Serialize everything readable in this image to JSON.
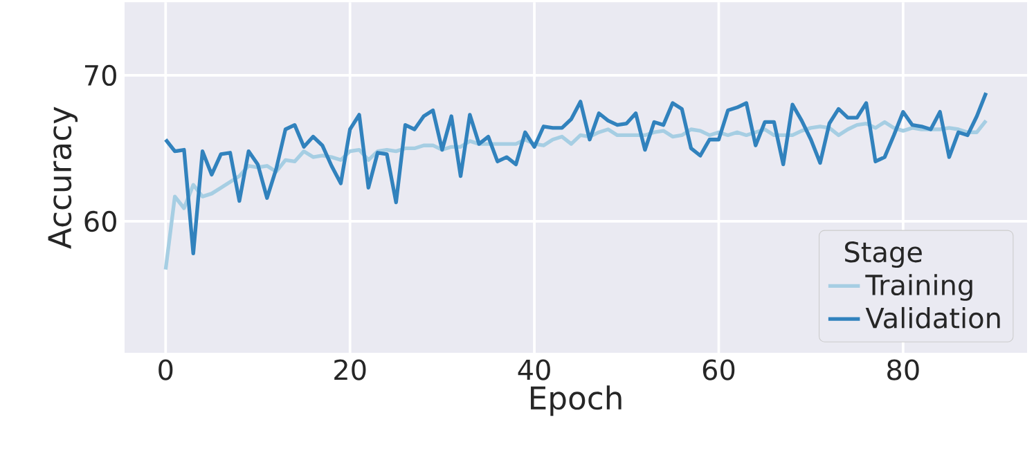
{
  "chart_data": {
    "type": "line",
    "xlabel": "Epoch",
    "ylabel": "Accuracy",
    "legend_title": "Stage",
    "legend": "bottom right",
    "grid": true,
    "x": [
      0,
      1,
      2,
      3,
      4,
      5,
      6,
      7,
      8,
      9,
      10,
      11,
      12,
      13,
      14,
      15,
      16,
      17,
      18,
      19,
      20,
      21,
      22,
      23,
      24,
      25,
      26,
      27,
      28,
      29,
      30,
      31,
      32,
      33,
      34,
      35,
      36,
      37,
      38,
      39,
      40,
      41,
      42,
      43,
      44,
      45,
      46,
      47,
      48,
      49,
      50,
      51,
      52,
      53,
      54,
      55,
      56,
      57,
      58,
      59,
      60,
      61,
      62,
      63,
      64,
      65,
      66,
      67,
      68,
      69,
      70,
      71,
      72,
      73,
      74,
      75,
      76,
      77,
      78,
      79,
      80,
      81,
      82,
      83,
      84,
      85,
      86,
      87,
      88,
      89
    ],
    "xlim": [
      -4.45,
      93.45
    ],
    "xticks": [
      0,
      20,
      40,
      60,
      80
    ],
    "ylim": [
      51,
      75
    ],
    "yticks": [
      60,
      70
    ],
    "series": [
      {
        "name": "Training",
        "color": "#a6cee3",
        "values": [
          56.7,
          61.7,
          60.9,
          62.5,
          61.7,
          61.9,
          62.3,
          62.7,
          63.1,
          63.8,
          63.7,
          63.8,
          63.4,
          64.2,
          64.1,
          64.8,
          64.4,
          64.5,
          64.4,
          64.2,
          64.8,
          64.9,
          64.2,
          64.8,
          64.9,
          64.8,
          65.0,
          65.0,
          65.2,
          65.2,
          64.9,
          65.1,
          65.1,
          65.5,
          65.3,
          65.3,
          65.3,
          65.3,
          65.3,
          65.6,
          65.3,
          65.2,
          65.6,
          65.8,
          65.3,
          65.9,
          65.8,
          66.1,
          66.3,
          65.9,
          65.9,
          65.9,
          65.9,
          66.1,
          66.2,
          65.8,
          65.9,
          66.3,
          66.2,
          65.9,
          66.1,
          65.9,
          66.1,
          65.9,
          66.1,
          66.3,
          65.9,
          65.9,
          65.9,
          66.2,
          66.4,
          66.5,
          66.4,
          65.9,
          66.3,
          66.6,
          66.7,
          66.4,
          66.8,
          66.4,
          66.2,
          66.4,
          66.3,
          66.3,
          66.3,
          66.4,
          66.3,
          66.1,
          66.1,
          66.9
        ]
      },
      {
        "name": "Validation",
        "color": "#3182bd",
        "values": [
          65.6,
          64.8,
          64.9,
          57.8,
          64.8,
          63.2,
          64.6,
          64.7,
          61.4,
          64.8,
          63.9,
          61.6,
          63.6,
          66.3,
          66.6,
          65.1,
          65.8,
          65.2,
          63.8,
          62.6,
          66.3,
          67.3,
          62.3,
          64.7,
          64.6,
          61.3,
          66.6,
          66.3,
          67.2,
          67.6,
          64.9,
          67.2,
          63.1,
          67.3,
          65.3,
          65.8,
          64.1,
          64.4,
          63.9,
          66.1,
          65.1,
          66.5,
          66.4,
          66.4,
          67.0,
          68.2,
          65.6,
          67.4,
          66.9,
          66.6,
          66.7,
          67.4,
          64.9,
          66.8,
          66.6,
          68.1,
          67.7,
          65.0,
          64.5,
          65.6,
          65.6,
          67.6,
          67.8,
          68.1,
          65.2,
          66.8,
          66.8,
          63.9,
          68.0,
          66.9,
          65.6,
          64.0,
          66.7,
          67.7,
          67.1,
          67.1,
          68.1,
          64.1,
          64.4,
          65.9,
          67.5,
          66.6,
          66.5,
          66.3,
          67.5,
          64.4,
          66.1,
          65.9,
          67.2,
          68.8
        ]
      }
    ]
  }
}
